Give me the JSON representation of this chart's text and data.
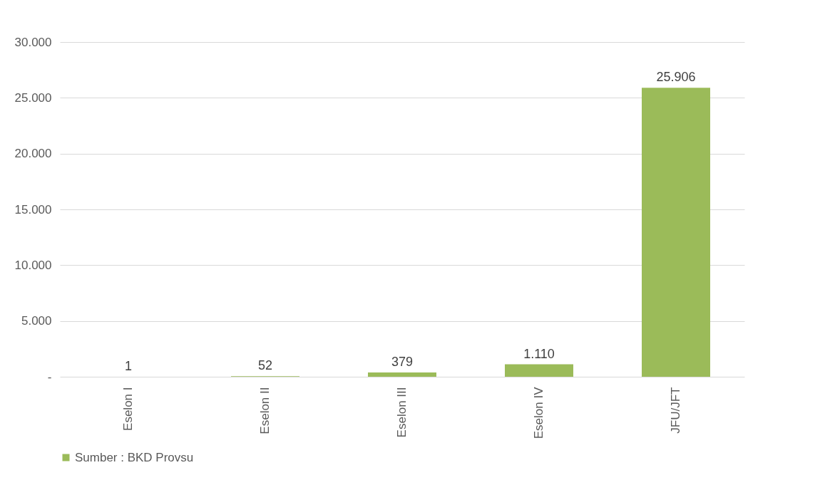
{
  "chart_data": {
    "type": "bar",
    "categories": [
      "Eselon I",
      "Eselon II",
      "Eselon III",
      "Eselon IV",
      "JFU/JFT"
    ],
    "series": [
      {
        "name": "Sumber : BKD Provsu",
        "color": "#9bbb59",
        "values": [
          1,
          52,
          379,
          1110,
          25906
        ],
        "value_labels": [
          "1",
          "52",
          "379",
          "1.110",
          "25.906"
        ]
      }
    ],
    "ylim": [
      0,
      30000
    ],
    "yticks": [
      {
        "value": 0,
        "label": "-"
      },
      {
        "value": 5000,
        "label": "5.000"
      },
      {
        "value": 10000,
        "label": "10.000"
      },
      {
        "value": 15000,
        "label": "15.000"
      },
      {
        "value": 20000,
        "label": "20.000"
      },
      {
        "value": 25000,
        "label": "25.000"
      },
      {
        "value": 30000,
        "label": "30.000"
      }
    ],
    "grid": "y",
    "legend": "bottom"
  }
}
